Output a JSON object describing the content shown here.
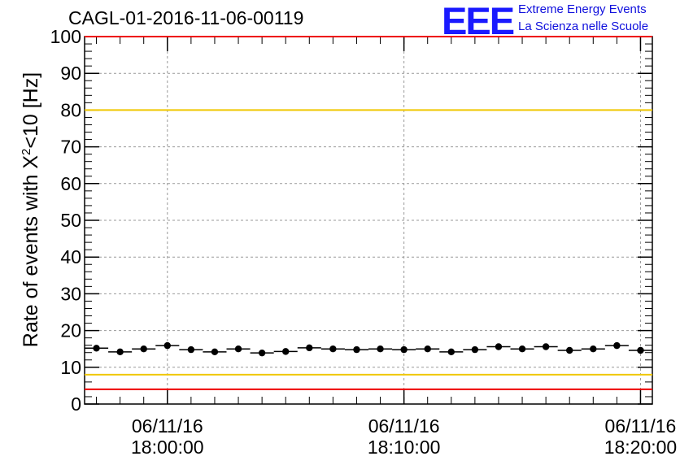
{
  "title": "CAGL-01-2016-11-06-00119",
  "brand": {
    "logo": "EEE",
    "line1": "Extreme Energy Events",
    "line2": "La Scienza nelle Scuole"
  },
  "colors": {
    "limit_red": "#ee0000",
    "limit_yellow": "#f0c800",
    "points": "#000000",
    "grid": "#999999",
    "brand": "#1a1aff"
  },
  "chart_data": {
    "type": "scatter",
    "title": "CAGL-01-2016-11-06-00119",
    "ylabel_parts": [
      "Rate of events with X",
      "2",
      "<10 [Hz]"
    ],
    "ylim": [
      0,
      100
    ],
    "y_ticks": [
      0,
      10,
      20,
      30,
      40,
      50,
      60,
      70,
      80,
      90,
      100
    ],
    "x_ticks": [
      {
        "x": "2016-11-06 18:00:00",
        "line1": "06/11/16",
        "line2": "18:00:00"
      },
      {
        "x": "2016-11-06 18:10:00",
        "line1": "06/11/16",
        "line2": "18:10:00"
      },
      {
        "x": "2016-11-06 18:20:00",
        "line1": "06/11/16",
        "line2": "18:20:00"
      }
    ],
    "xlim": [
      "2016-11-06 17:56:30",
      "2016-11-06 18:20:30"
    ],
    "grid": true,
    "bin_width_seconds": 60,
    "reference_lines": [
      {
        "y": 100,
        "color": "red"
      },
      {
        "y": 80,
        "color": "yellow"
      },
      {
        "y": 8,
        "color": "yellow"
      },
      {
        "y": 4,
        "color": "red"
      }
    ],
    "points": [
      {
        "x": "2016-11-06 17:57:00",
        "y": 15.2
      },
      {
        "x": "2016-11-06 17:58:00",
        "y": 14.2
      },
      {
        "x": "2016-11-06 17:59:00",
        "y": 15.0
      },
      {
        "x": "2016-11-06 18:00:00",
        "y": 15.9
      },
      {
        "x": "2016-11-06 18:01:00",
        "y": 14.8
      },
      {
        "x": "2016-11-06 18:02:00",
        "y": 14.2
      },
      {
        "x": "2016-11-06 18:03:00",
        "y": 15.0
      },
      {
        "x": "2016-11-06 18:04:00",
        "y": 13.9
      },
      {
        "x": "2016-11-06 18:05:00",
        "y": 14.3
      },
      {
        "x": "2016-11-06 18:06:00",
        "y": 15.3
      },
      {
        "x": "2016-11-06 18:07:00",
        "y": 15.0
      },
      {
        "x": "2016-11-06 18:08:00",
        "y": 14.8
      },
      {
        "x": "2016-11-06 18:09:00",
        "y": 15.0
      },
      {
        "x": "2016-11-06 18:10:00",
        "y": 14.8
      },
      {
        "x": "2016-11-06 18:11:00",
        "y": 15.0
      },
      {
        "x": "2016-11-06 18:12:00",
        "y": 14.2
      },
      {
        "x": "2016-11-06 18:13:00",
        "y": 14.8
      },
      {
        "x": "2016-11-06 18:14:00",
        "y": 15.6
      },
      {
        "x": "2016-11-06 18:15:00",
        "y": 15.0
      },
      {
        "x": "2016-11-06 18:16:00",
        "y": 15.6
      },
      {
        "x": "2016-11-06 18:17:00",
        "y": 14.6
      },
      {
        "x": "2016-11-06 18:18:00",
        "y": 15.0
      },
      {
        "x": "2016-11-06 18:19:00",
        "y": 15.9
      },
      {
        "x": "2016-11-06 18:20:00",
        "y": 14.6
      }
    ]
  }
}
